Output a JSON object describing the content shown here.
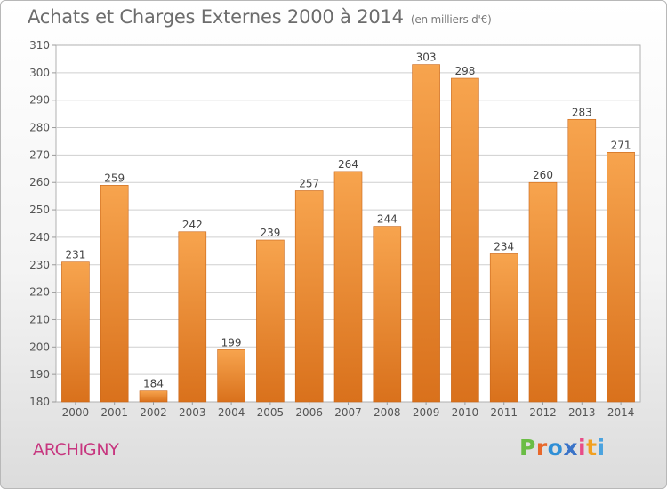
{
  "chart_data": {
    "type": "bar",
    "title": "Achats et Charges Externes 2000 à 2014",
    "unit_label": "(en milliers d'€)",
    "categories": [
      "2000",
      "2001",
      "2002",
      "2003",
      "2004",
      "2005",
      "2006",
      "2007",
      "2008",
      "2009",
      "2010",
      "2011",
      "2012",
      "2013",
      "2014"
    ],
    "values": [
      231,
      259,
      184,
      242,
      199,
      239,
      257,
      264,
      244,
      303,
      298,
      234,
      260,
      283,
      271
    ],
    "data_labels": [
      "231",
      "259",
      "184",
      "242",
      "199",
      "239",
      "257",
      "264",
      "244",
      "303",
      "298",
      "234",
      "260",
      "283",
      "271"
    ],
    "ylim": [
      180,
      310
    ],
    "yticks": [
      "180",
      "190",
      "200",
      "210",
      "220",
      "230",
      "240",
      "250",
      "260",
      "270",
      "280",
      "290",
      "300",
      "310"
    ],
    "xlabel": "",
    "ylabel": "",
    "grid": true,
    "colors": {
      "bar_top": "#f7a44e",
      "bar_bottom": "#d9711c",
      "bar_stroke": "#c8661a",
      "grid": "#cfcfcf"
    }
  },
  "footer": {
    "commune": "ARCHIGNY",
    "logo_letters": [
      "P",
      "r",
      "o",
      "x",
      "i",
      "t",
      "i"
    ],
    "logo_colors": [
      "#6abd45",
      "#e8682a",
      "#2f8fd6",
      "#3a73c8",
      "#e84c88",
      "#f2a020",
      "#4aa3df"
    ]
  }
}
